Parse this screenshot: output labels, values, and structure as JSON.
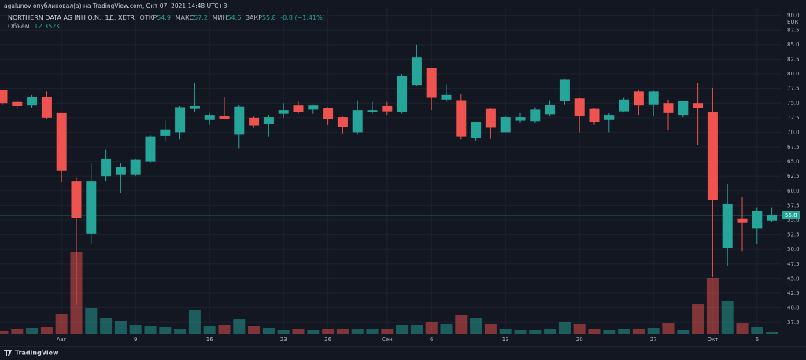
{
  "chart_data": {
    "type": "candlestick",
    "header": "agalunov опубликовал(а) на TradingView.com, Окт 07, 2021 14:48 UTC+3",
    "title": "NORTHERN DATA AG INH O.N., 1Д, XETR",
    "legend_labels": {
      "open": "ОТКР",
      "high": "МАКС",
      "low": "МИН",
      "close": "ЗАКР"
    },
    "change": "-0.8 (−1.41%)",
    "volume_label": "Объём",
    "volume_last_label": "12.352K",
    "currency": "EUR",
    "footer": "TradingView",
    "up_color": "#26a69a",
    "down_color": "#ef5350",
    "categories": [
      null,
      null,
      null,
      null,
      "Авг",
      null,
      null,
      null,
      null,
      "9",
      null,
      null,
      null,
      null,
      "16",
      null,
      null,
      null,
      null,
      "23",
      null,
      null,
      "26",
      null,
      null,
      null,
      "Сен",
      null,
      null,
      "6",
      null,
      null,
      null,
      null,
      "13",
      null,
      null,
      null,
      null,
      "20",
      null,
      null,
      null,
      null,
      "27",
      null,
      null,
      null,
      "Окт",
      null,
      null,
      "6",
      null
    ],
    "open": [
      77.3,
      75.2,
      74.6,
      76.0,
      73.3,
      61.7,
      52.6,
      62.5,
      62.7,
      62.7,
      65.0,
      69.4,
      70.0,
      74.0,
      72.1,
      72.8,
      69.6,
      72.5,
      71.4,
      73.2,
      74.6,
      73.9,
      74.1,
      72.6,
      70.0,
      73.5,
      74.5,
      73.5,
      78.1,
      81.0,
      75.6,
      75.5,
      69.0,
      74.0,
      70.0,
      72.0,
      71.9,
      73.1,
      75.3,
      75.8,
      74.0,
      72.1,
      73.6,
      77.0,
      74.8,
      75.0,
      73.0,
      75.0,
      73.5,
      50.2,
      55.3,
      53.6,
      54.9
    ],
    "high": [
      77.3,
      75.5,
      76.4,
      77.0,
      73.3,
      62.3,
      64.8,
      67.0,
      64.8,
      65.5,
      69.5,
      72.0,
      74.5,
      78.5,
      73.3,
      76.0,
      74.7,
      72.7,
      73.0,
      75.0,
      75.4,
      74.8,
      74.3,
      72.7,
      75.5,
      75.2,
      75.2,
      80.0,
      85.0,
      81.0,
      78.2,
      76.5,
      71.8,
      74.1,
      72.8,
      73.3,
      74.3,
      75.5,
      79.1,
      75.9,
      74.2,
      73.3,
      75.9,
      77.2,
      77.1,
      75.6,
      75.4,
      78.4,
      77.6,
      61.2,
      59.0,
      57.2,
      57.2
    ],
    "low": [
      74.8,
      74.0,
      74.2,
      72.2,
      61.5,
      40.5,
      51.0,
      61.7,
      59.7,
      62.5,
      64.8,
      68.5,
      68.8,
      73.5,
      71.3,
      72.2,
      67.3,
      70.8,
      69.3,
      72.5,
      73.2,
      73.2,
      71.3,
      69.8,
      69.6,
      73.2,
      73.0,
      73.2,
      78.0,
      73.8,
      75.2,
      68.8,
      68.6,
      68.9,
      70.0,
      71.7,
      71.6,
      72.8,
      74.8,
      70.0,
      71.3,
      70.0,
      73.4,
      73.0,
      72.8,
      70.3,
      72.6,
      67.9,
      45.2,
      47.1,
      49.7,
      50.9,
      54.6
    ],
    "close": [
      75.0,
      74.5,
      76.0,
      72.5,
      63.5,
      55.4,
      61.7,
      65.5,
      64.0,
      65.4,
      69.3,
      70.5,
      74.3,
      74.5,
      73.0,
      72.3,
      74.4,
      71.2,
      72.6,
      73.8,
      73.5,
      74.6,
      72.2,
      70.9,
      73.8,
      73.8,
      73.6,
      79.6,
      82.8,
      75.9,
      76.4,
      69.3,
      71.8,
      70.8,
      72.6,
      72.6,
      73.9,
      74.7,
      79.0,
      72.8,
      71.8,
      73.0,
      75.6,
      74.6,
      77.0,
      73.3,
      75.4,
      74.2,
      58.4,
      57.8,
      54.5,
      56.6,
      55.8
    ],
    "volume": [
      16900,
      29500,
      33700,
      38000,
      109600,
      442800,
      139200,
      84300,
      71700,
      50600,
      42200,
      38000,
      29500,
      126500,
      42200,
      46400,
      80100,
      42200,
      33700,
      21100,
      25300,
      21100,
      25300,
      29500,
      29500,
      25300,
      29500,
      46400,
      50600,
      63300,
      54800,
      101200,
      88600,
      54800,
      29500,
      21100,
      21100,
      25300,
      63300,
      54800,
      25300,
      21100,
      29500,
      25300,
      33700,
      59000,
      21100,
      160200,
      299400,
      177100,
      59000,
      38000,
      12352
    ],
    "ylim": [
      35.5,
      91.3
    ],
    "vlim": [
      0,
      1750000
    ],
    "yticks": [
      37.5,
      {
        "value": 40,
        "label": "40.0"
      },
      42.5,
      {
        "value": 45,
        "label": "45.0"
      },
      47.5,
      {
        "value": 50,
        "label": "50.0"
      },
      52.5,
      {
        "value": 55,
        "label": "55.0"
      },
      57.5,
      {
        "value": 60,
        "label": "60.0"
      },
      62.5,
      {
        "value": 65,
        "label": "65.0"
      },
      67.5,
      {
        "value": 70,
        "label": "70.0"
      },
      72.5,
      {
        "value": 75,
        "label": "75.0"
      },
      77.5,
      {
        "value": 80,
        "label": "80.0"
      },
      82.5,
      {
        "value": 85,
        "label": "85.0"
      },
      87.5,
      {
        "value": 90,
        "label": "90.0"
      }
    ],
    "grid": true
  }
}
